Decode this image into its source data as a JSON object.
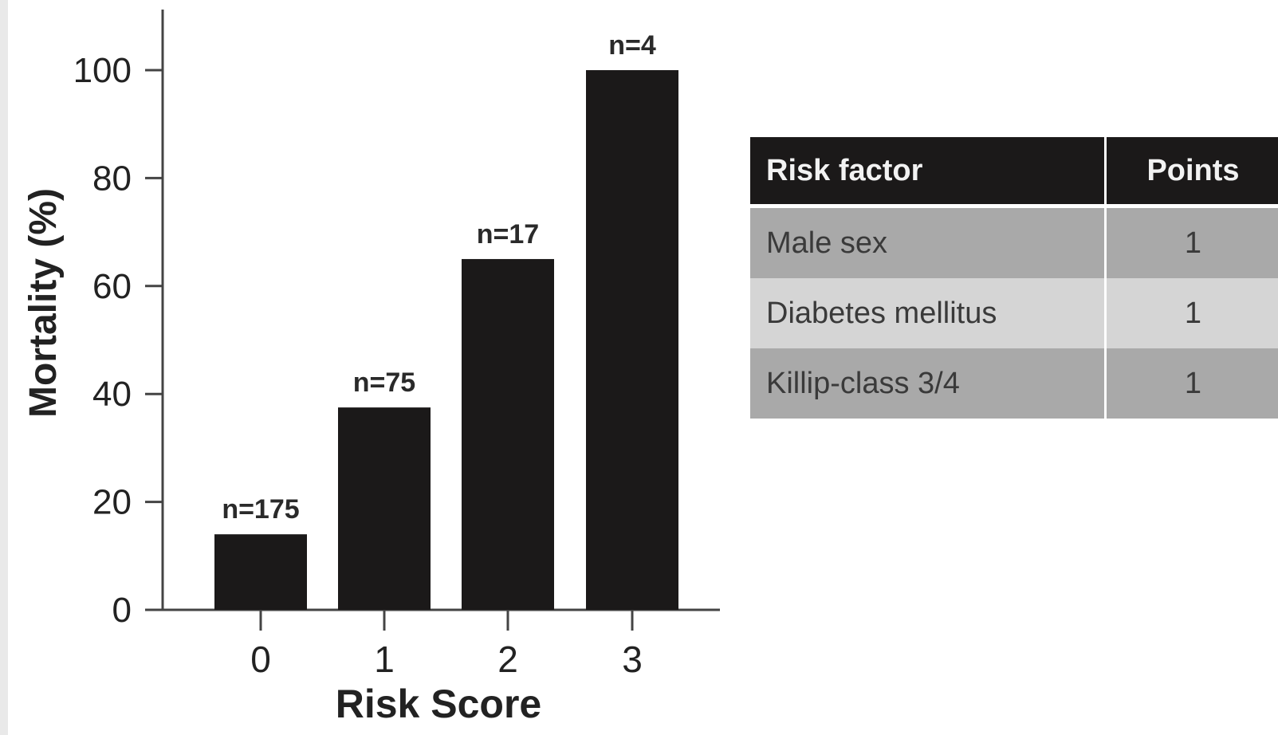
{
  "chart_data": {
    "type": "bar",
    "categories": [
      "0",
      "1",
      "2",
      "3"
    ],
    "values": [
      14,
      37.5,
      65,
      100
    ],
    "bar_labels": [
      "n=175",
      "n=75",
      "n=17",
      "n=4"
    ],
    "xlabel": "Risk Score",
    "ylabel": "Mortality (%)",
    "yticks": [
      "0",
      "20",
      "40",
      "60",
      "80",
      "100"
    ],
    "ylim": [
      0,
      100
    ],
    "grid": false,
    "bar_color": "#1b1919"
  },
  "table": {
    "headers": [
      "Risk factor",
      "Points"
    ],
    "rows": [
      {
        "factor": "Male sex",
        "points": "1"
      },
      {
        "factor": "Diabetes mellitus",
        "points": "1"
      },
      {
        "factor": "Killip-class 3/4",
        "points": "1"
      }
    ]
  }
}
